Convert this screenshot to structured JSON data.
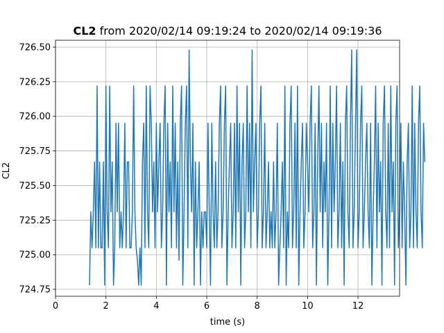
{
  "chart_data": {
    "type": "line",
    "title_bold": "CL2",
    "title_rest": " from 2020/02/14 09:19:24 to 2020/02/14 09:19:36",
    "xlabel": "time (s)",
    "ylabel": "CL2",
    "xlim": [
      0,
      13.65
    ],
    "ylim": [
      724.7,
      726.55
    ],
    "xticks": [
      0,
      2,
      4,
      6,
      8,
      10,
      12
    ],
    "xtick_labels": [
      "0",
      "2",
      "4",
      "6",
      "8",
      "10",
      "12"
    ],
    "yticks": [
      724.75,
      725.0,
      725.25,
      725.5,
      725.75,
      726.0,
      726.25,
      726.5
    ],
    "ytick_labels": [
      "724.75",
      "725.00",
      "725.25",
      "725.50",
      "725.75",
      "726.00",
      "726.25",
      "726.50"
    ],
    "grid": true,
    "series_color": "#1f77b4",
    "series": [
      {
        "x_start": 1.35,
        "x_step": 0.05,
        "values": [
          724.78,
          725.31,
          725.05,
          725.31,
          725.67,
          725.05,
          726.22,
          725.05,
          725.67,
          725.05,
          725.05,
          725.67,
          724.78,
          726.22,
          725.31,
          725.05,
          726.22,
          725.31,
          725.67,
          724.78,
          725.05,
          725.95,
          725.31,
          725.95,
          725.05,
          725.31,
          725.05,
          725.31,
          725.95,
          725.05,
          725.67,
          725.67,
          725.05,
          725.05,
          725.31,
          726.22,
          725.31,
          725.05,
          724.96,
          724.78,
          725.05,
          724.78,
          725.67,
          725.95,
          725.05,
          726.22,
          725.31,
          725.05,
          726.22,
          725.95,
          725.31,
          725.67,
          725.05,
          725.95,
          725.31,
          725.67,
          725.95,
          725.05,
          725.31,
          725.95,
          726.22,
          724.78,
          725.95,
          725.31,
          725.67,
          725.05,
          726.22,
          725.31,
          725.95,
          725.05,
          725.67,
          724.96,
          725.95,
          726.22,
          724.78,
          725.31,
          725.95,
          726.22,
          725.05,
          726.48,
          725.67,
          725.31,
          725.95,
          724.78,
          725.67,
          725.05,
          725.31,
          725.67,
          724.78,
          725.31,
          725.05,
          725.31,
          725.31,
          725.05,
          725.95,
          725.31,
          724.78,
          725.95,
          725.31,
          725.05,
          725.67,
          725.05,
          725.31,
          725.95,
          726.22,
          725.05,
          725.31,
          725.95,
          726.22,
          724.78,
          725.31,
          725.67,
          725.95,
          725.05,
          725.31,
          725.95,
          725.05,
          726.22,
          725.31,
          725.95,
          724.78,
          725.67,
          725.95,
          725.05,
          725.31,
          726.22,
          725.31,
          725.95,
          725.05,
          726.48,
          725.31,
          725.67,
          725.95,
          725.05,
          725.31,
          725.95,
          726.22,
          725.05,
          725.31,
          725.95,
          725.05,
          725.31,
          725.67,
          725.05,
          725.31,
          725.05,
          725.67,
          725.05,
          725.31,
          725.95,
          724.78,
          725.05,
          725.31,
          725.67,
          725.05,
          726.22,
          724.78,
          725.31,
          725.05,
          725.95,
          726.22,
          725.05,
          725.31,
          725.95,
          725.05,
          726.22,
          724.78,
          725.31,
          725.67,
          725.95,
          725.05,
          725.31,
          725.95,
          725.67,
          725.31,
          725.95,
          726.22,
          725.05,
          725.31,
          725.95,
          724.78,
          725.67,
          726.22,
          725.31,
          725.95,
          725.05,
          725.67,
          725.31,
          725.95,
          724.78,
          725.31,
          726.22,
          725.05,
          725.95,
          725.31,
          725.67,
          726.22,
          725.05,
          725.31,
          725.95,
          725.05,
          725.67,
          724.78,
          725.95,
          726.22,
          725.31,
          725.05,
          725.95,
          726.48,
          725.05,
          725.31,
          725.95,
          726.48,
          725.05,
          725.31,
          725.95,
          726.22,
          725.05,
          725.31,
          725.67,
          725.95,
          725.31,
          725.05,
          725.95,
          724.78,
          725.31,
          725.67,
          726.22,
          725.05,
          725.95,
          725.31,
          725.67,
          724.78,
          725.95,
          726.22,
          725.31,
          725.05,
          725.95,
          725.05,
          726.22,
          725.31,
          725.67,
          724.78,
          725.95,
          726.22,
          725.05,
          725.31,
          725.95,
          725.05,
          725.67,
          725.31,
          724.78,
          725.67,
          725.95,
          725.05,
          725.31,
          726.22,
          725.05,
          725.95,
          725.31,
          725.05,
          725.95,
          726.22,
          725.31,
          725.05,
          725.95,
          725.67
        ]
      }
    ]
  }
}
